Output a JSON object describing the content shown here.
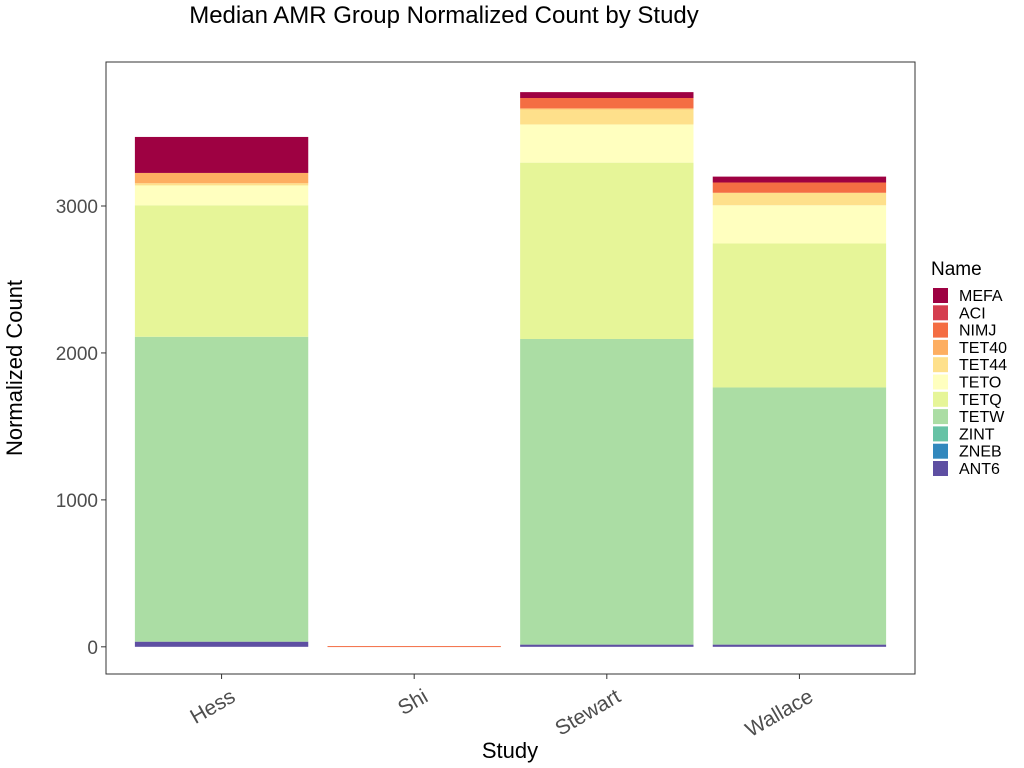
{
  "chart_data": {
    "type": "bar",
    "stacked": true,
    "title": "Median AMR Group Normalized Count by Study",
    "xlabel": "Study",
    "ylabel": "Normalized Count",
    "categories": [
      "Hess",
      "Shi",
      "Stewart",
      "Wallace"
    ],
    "yticks": [
      0,
      1000,
      2000,
      3000
    ],
    "ylim": [
      -185,
      3980
    ],
    "grid": false,
    "legend": {
      "title": "Name",
      "placement": "right"
    },
    "series": [
      {
        "name": "ANT6",
        "color": "#5E4FA2",
        "values": [
          35,
          0,
          15,
          15
        ]
      },
      {
        "name": "ZNEB",
        "color": "#3288BD",
        "values": [
          0,
          0,
          0,
          0
        ]
      },
      {
        "name": "ZINT",
        "color": "#66C2A5",
        "values": [
          0,
          0,
          0,
          0
        ]
      },
      {
        "name": "TETW",
        "color": "#ABDDA4",
        "values": [
          2075,
          0,
          2080,
          1750
        ]
      },
      {
        "name": "TETQ",
        "color": "#E6F598",
        "values": [
          895,
          0,
          1200,
          980
        ]
      },
      {
        "name": "TETO",
        "color": "#FFFFBF",
        "values": [
          135,
          0,
          260,
          260
        ]
      },
      {
        "name": "TET44",
        "color": "#FEE08B",
        "values": [
          15,
          0,
          105,
          85
        ]
      },
      {
        "name": "TET40",
        "color": "#FDAE61",
        "values": [
          70,
          0,
          5,
          0
        ]
      },
      {
        "name": "NIMJ",
        "color": "#F46D43",
        "values": [
          0,
          5,
          70,
          70
        ]
      },
      {
        "name": "ACI",
        "color": "#D53E4F",
        "values": [
          0,
          0,
          0,
          0
        ]
      },
      {
        "name": "MEFA",
        "color": "#9E0142",
        "values": [
          245,
          0,
          40,
          40
        ]
      }
    ]
  }
}
